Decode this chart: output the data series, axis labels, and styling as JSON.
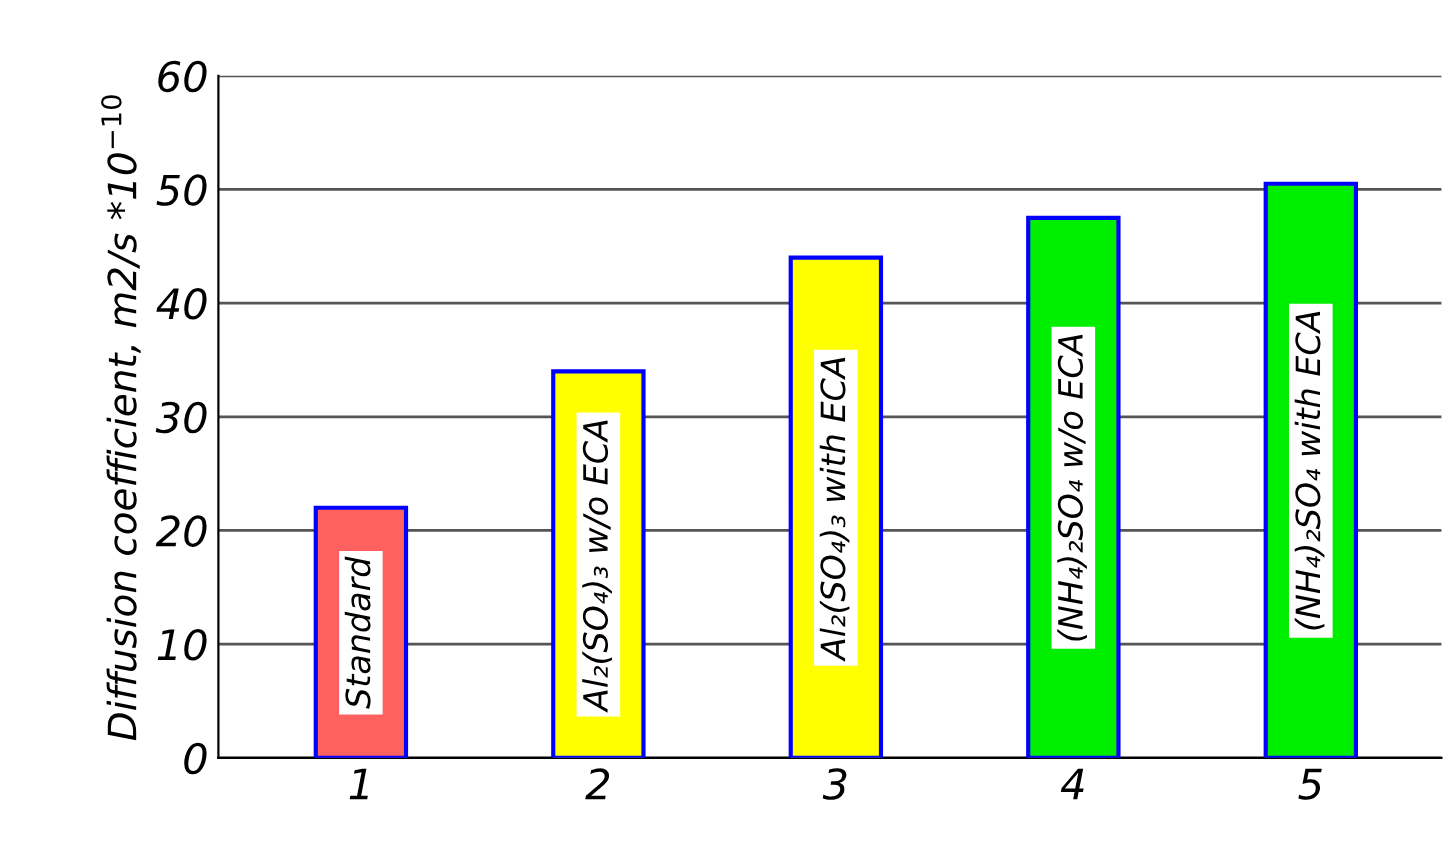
{
  "chart_data": {
    "type": "bar",
    "ylabel": "Diffusion coefficient, m2/s *10$^{−10}$",
    "categories": [
      "1",
      "2",
      "3",
      "4",
      "5"
    ],
    "values": [
      22,
      34,
      44,
      47.5,
      50.5
    ],
    "colors": [
      "#ff6060",
      "#ffff00",
      "#ffff00",
      "#00ee00",
      "#00ee00"
    ],
    "ylim": [
      0,
      60
    ],
    "yticks": [
      0,
      10,
      20,
      30,
      40,
      50,
      60
    ],
    "grid": "y",
    "annotations": [
      "Standard",
      "Al₂(SO₄)₃ w/o ECA",
      "Al₂(SO₄)₃ with ECA",
      "(NH₄)₂SO₄ w/o ECA",
      "(NH₄)₂SO₄ with ECA"
    ]
  }
}
